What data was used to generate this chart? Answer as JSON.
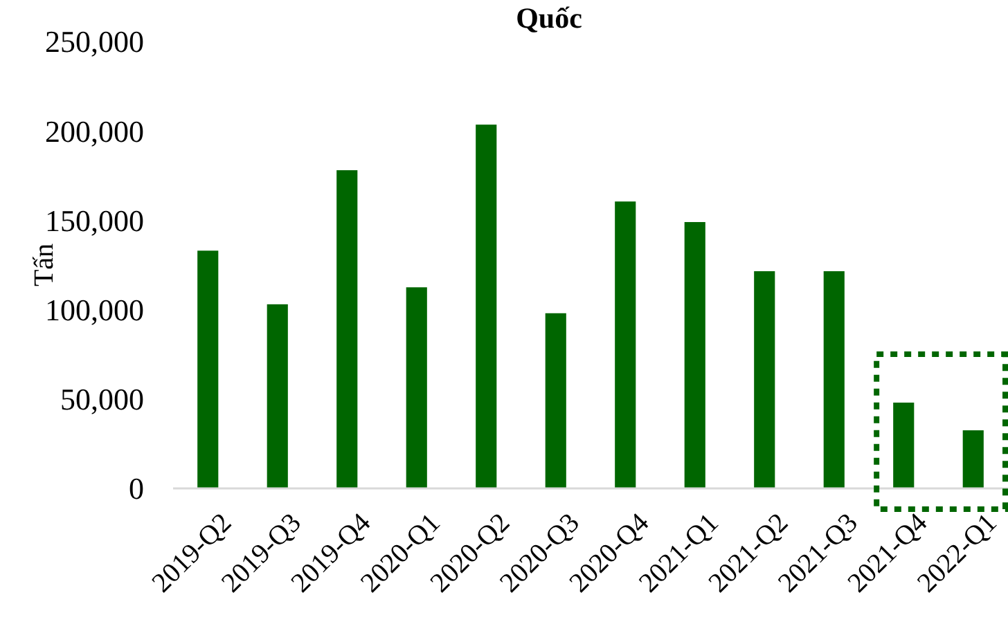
{
  "chart_data": {
    "type": "bar",
    "title": "Quốc",
    "ylabel": "Tấn",
    "categories": [
      "2019-Q2",
      "2019-Q3",
      "2019-Q4",
      "2020-Q1",
      "2020-Q2",
      "2020-Q3",
      "2020-Q4",
      "2021-Q1",
      "2021-Q2",
      "2021-Q3",
      "2021-Q4",
      "2022-Q1"
    ],
    "values": [
      133000,
      103000,
      178000,
      112500,
      203500,
      98000,
      160500,
      149000,
      121500,
      121500,
      48000,
      32500
    ],
    "color": "#006600",
    "ylim": [
      0,
      250000
    ],
    "yticks": [
      {
        "value": 0,
        "label": "0"
      },
      {
        "value": 50000,
        "label": "50,000"
      },
      {
        "value": 100000,
        "label": "100,000"
      },
      {
        "value": 150000,
        "label": "150,000"
      },
      {
        "value": 200000,
        "label": "200,000"
      },
      {
        "value": 250000,
        "label": "250,000"
      }
    ],
    "grid": false
  }
}
